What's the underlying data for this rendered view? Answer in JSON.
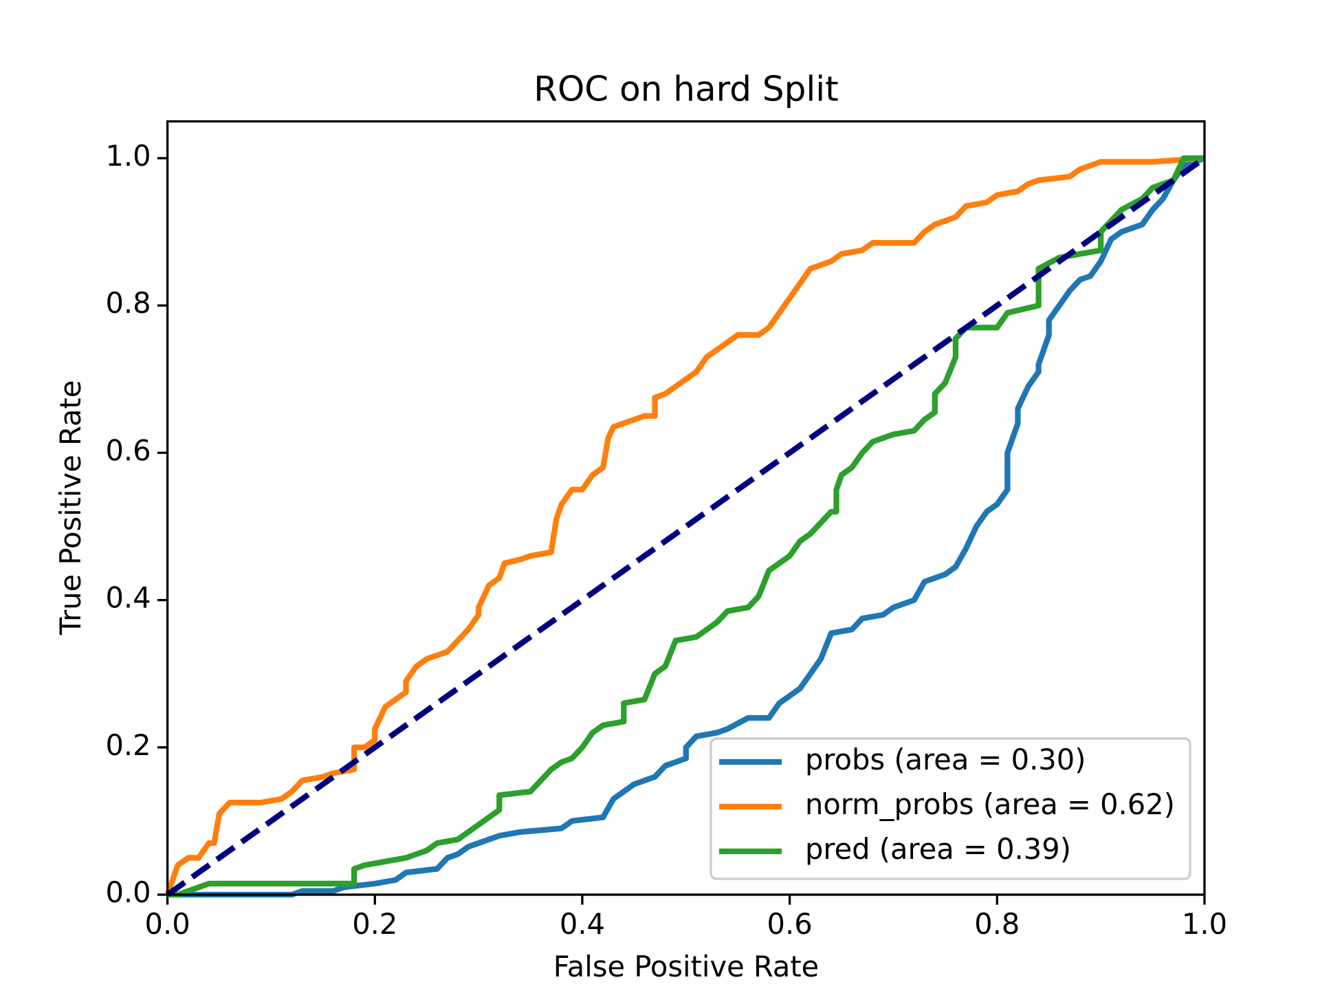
{
  "chart_data": {
    "type": "line",
    "title": "ROC on hard Split",
    "x_label": "False Positive Rate",
    "y_label": "True Positive Rate",
    "xlim": [
      0,
      1
    ],
    "ylim": [
      0,
      1.05
    ],
    "xticks": [
      {
        "value": 0,
        "label": "0.0"
      },
      0.2,
      0.4,
      0.6,
      0.8,
      {
        "value": 1,
        "label": "1.0"
      }
    ],
    "yticks": [
      {
        "value": 0,
        "label": "0.0"
      },
      0.2,
      0.4,
      0.6,
      0.8,
      {
        "value": 1,
        "label": "1.0"
      }
    ],
    "legend": "lower right",
    "series": [
      {
        "name": "probs (area = 0.30)",
        "color": "#1f77b4",
        "x": [
          0,
          0.12,
          0.13,
          0.16,
          0.17,
          0.2,
          0.22,
          0.23,
          0.26,
          0.27,
          0.28,
          0.29,
          0.3,
          0.31,
          0.32,
          0.34,
          0.38,
          0.39,
          0.42,
          0.43,
          0.44,
          0.45,
          0.47,
          0.48,
          0.5,
          0.5,
          0.51,
          0.53,
          0.54,
          0.56,
          0.58,
          0.59,
          0.6,
          0.61,
          0.62,
          0.63,
          0.64,
          0.66,
          0.67,
          0.69,
          0.7,
          0.72,
          0.73,
          0.74,
          0.75,
          0.76,
          0.77,
          0.78,
          0.79,
          0.8,
          0.81,
          0.81,
          0.82,
          0.82,
          0.83,
          0.84,
          0.84,
          0.85,
          0.85,
          0.86,
          0.87,
          0.88,
          0.89,
          0.9,
          0.91,
          0.92,
          0.94,
          0.95,
          0.96,
          0.97,
          0.98,
          1
        ],
        "values": [
          0,
          0,
          0.005,
          0.005,
          0.01,
          0.015,
          0.02,
          0.03,
          0.035,
          0.05,
          0.055,
          0.065,
          0.07,
          0.075,
          0.08,
          0.085,
          0.09,
          0.1,
          0.105,
          0.13,
          0.14,
          0.15,
          0.16,
          0.175,
          0.185,
          0.2,
          0.215,
          0.22,
          0.225,
          0.24,
          0.24,
          0.26,
          0.27,
          0.28,
          0.3,
          0.32,
          0.355,
          0.36,
          0.375,
          0.38,
          0.39,
          0.4,
          0.425,
          0.43,
          0.435,
          0.445,
          0.47,
          0.5,
          0.52,
          0.53,
          0.55,
          0.6,
          0.64,
          0.66,
          0.69,
          0.71,
          0.72,
          0.76,
          0.78,
          0.8,
          0.82,
          0.835,
          0.84,
          0.86,
          0.89,
          0.9,
          0.91,
          0.93,
          0.945,
          0.97,
          0.99,
          1
        ]
      },
      {
        "name": "norm_probs (area = 0.62)",
        "color": "#ff7f0e",
        "x": [
          0,
          0.01,
          0.02,
          0.03,
          0.04,
          0.045,
          0.05,
          0.06,
          0.09,
          0.11,
          0.12,
          0.13,
          0.15,
          0.16,
          0.18,
          0.18,
          0.19,
          0.2,
          0.2,
          0.21,
          0.22,
          0.23,
          0.23,
          0.24,
          0.25,
          0.26,
          0.27,
          0.28,
          0.29,
          0.3,
          0.3,
          0.31,
          0.32,
          0.325,
          0.34,
          0.35,
          0.37,
          0.375,
          0.38,
          0.39,
          0.4,
          0.41,
          0.42,
          0.425,
          0.43,
          0.44,
          0.45,
          0.46,
          0.47,
          0.47,
          0.48,
          0.49,
          0.5,
          0.51,
          0.52,
          0.53,
          0.54,
          0.55,
          0.57,
          0.58,
          0.59,
          0.6,
          0.61,
          0.62,
          0.64,
          0.65,
          0.67,
          0.68,
          0.72,
          0.73,
          0.74,
          0.76,
          0.77,
          0.79,
          0.8,
          0.82,
          0.83,
          0.84,
          0.87,
          0.88,
          0.9,
          0.95,
          1
        ],
        "values": [
          0,
          0.04,
          0.05,
          0.05,
          0.07,
          0.07,
          0.11,
          0.125,
          0.125,
          0.13,
          0.14,
          0.155,
          0.16,
          0.165,
          0.17,
          0.2,
          0.2,
          0.21,
          0.225,
          0.255,
          0.265,
          0.275,
          0.29,
          0.31,
          0.32,
          0.325,
          0.33,
          0.345,
          0.36,
          0.38,
          0.39,
          0.42,
          0.43,
          0.45,
          0.455,
          0.46,
          0.465,
          0.51,
          0.53,
          0.55,
          0.55,
          0.57,
          0.58,
          0.62,
          0.635,
          0.64,
          0.645,
          0.65,
          0.65,
          0.675,
          0.68,
          0.69,
          0.7,
          0.71,
          0.73,
          0.74,
          0.75,
          0.76,
          0.76,
          0.77,
          0.79,
          0.81,
          0.83,
          0.85,
          0.86,
          0.87,
          0.875,
          0.885,
          0.885,
          0.9,
          0.91,
          0.92,
          0.935,
          0.94,
          0.95,
          0.955,
          0.965,
          0.97,
          0.975,
          0.985,
          0.995,
          0.995,
          1
        ]
      },
      {
        "name": "pred (area = 0.39)",
        "color": "#2ca02c",
        "x": [
          0,
          0.01,
          0.02,
          0.03,
          0.04,
          0.18,
          0.18,
          0.19,
          0.21,
          0.23,
          0.24,
          0.25,
          0.26,
          0.28,
          0.29,
          0.3,
          0.31,
          0.32,
          0.32,
          0.35,
          0.36,
          0.37,
          0.38,
          0.39,
          0.4,
          0.41,
          0.42,
          0.44,
          0.44,
          0.46,
          0.47,
          0.48,
          0.49,
          0.51,
          0.52,
          0.53,
          0.54,
          0.56,
          0.57,
          0.58,
          0.59,
          0.6,
          0.61,
          0.62,
          0.64,
          0.645,
          0.645,
          0.65,
          0.66,
          0.67,
          0.68,
          0.7,
          0.72,
          0.73,
          0.74,
          0.74,
          0.75,
          0.76,
          0.76,
          0.77,
          0.8,
          0.81,
          0.84,
          0.84,
          0.86,
          0.9,
          0.9,
          0.92,
          0.94,
          0.95,
          0.97,
          0.98,
          1
        ],
        "values": [
          0,
          0,
          0.005,
          0.01,
          0.015,
          0.015,
          0.035,
          0.04,
          0.045,
          0.05,
          0.055,
          0.06,
          0.07,
          0.075,
          0.085,
          0.095,
          0.105,
          0.115,
          0.135,
          0.14,
          0.155,
          0.17,
          0.18,
          0.185,
          0.2,
          0.22,
          0.23,
          0.235,
          0.26,
          0.265,
          0.3,
          0.31,
          0.345,
          0.35,
          0.36,
          0.37,
          0.385,
          0.39,
          0.405,
          0.44,
          0.45,
          0.46,
          0.48,
          0.49,
          0.52,
          0.52,
          0.55,
          0.57,
          0.58,
          0.6,
          0.615,
          0.625,
          0.63,
          0.645,
          0.655,
          0.68,
          0.695,
          0.73,
          0.755,
          0.77,
          0.77,
          0.79,
          0.8,
          0.85,
          0.865,
          0.875,
          0.9,
          0.93,
          0.945,
          0.96,
          0.97,
          1,
          1
        ]
      }
    ],
    "reference_line": {
      "x": [
        0,
        1
      ],
      "values": [
        0,
        1
      ],
      "color": "navy"
    }
  }
}
